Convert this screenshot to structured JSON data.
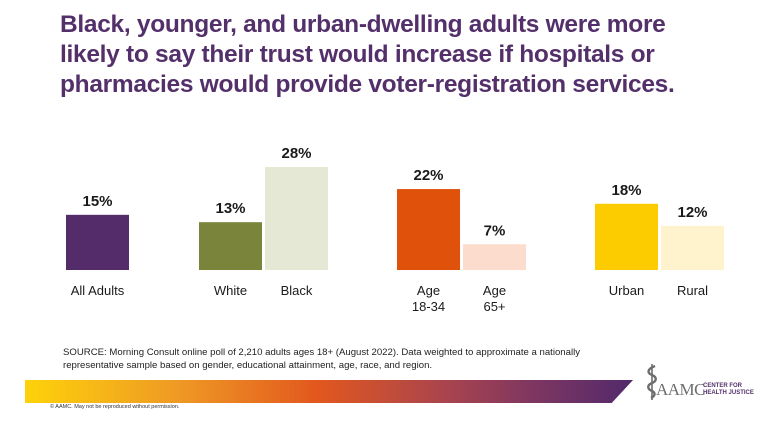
{
  "title": {
    "lines": [
      "Black, younger, and urban-dwelling adults were more",
      "likely to say their trust would increase if hospitals or",
      "pharmacies would provide voter-registration services."
    ]
  },
  "chart_data": {
    "type": "bar",
    "title": "Black, younger, and urban-dwelling adults were more likely to say their trust would increase if hospitals or pharmacies would provide voter-registration services.",
    "xlabel": "",
    "ylabel": "",
    "ylim": [
      0,
      28
    ],
    "grid": false,
    "legend": "none",
    "value_suffix": "%",
    "groups": [
      {
        "name": "overall",
        "bars": [
          {
            "category": "All Adults",
            "label_lines": [
              "All Adults"
            ],
            "value": 15,
            "value_label": "15%",
            "color": "#542c6a"
          }
        ]
      },
      {
        "name": "race",
        "bars": [
          {
            "category": "White",
            "label_lines": [
              "White"
            ],
            "value": 13,
            "value_label": "13%",
            "color": "#7a853b"
          },
          {
            "category": "Black",
            "label_lines": [
              "Black"
            ],
            "value": 28,
            "value_label": "28%",
            "color": "#e5e8d4"
          }
        ]
      },
      {
        "name": "age",
        "bars": [
          {
            "category": "Age 18-34",
            "label_lines": [
              "Age",
              "18-34"
            ],
            "value": 22,
            "value_label": "22%",
            "color": "#e0510b"
          },
          {
            "category": "Age 65+",
            "label_lines": [
              "Age",
              "65+"
            ],
            "value": 7,
            "value_label": "7%",
            "color": "#fcdccd"
          }
        ]
      },
      {
        "name": "location",
        "bars": [
          {
            "category": "Urban",
            "label_lines": [
              "Urban"
            ],
            "value": 18,
            "value_label": "18%",
            "color": "#fccb00"
          },
          {
            "category": "Rural",
            "label_lines": [
              "Rural"
            ],
            "value": 12,
            "value_label": "12%",
            "color": "#fef3cc"
          }
        ]
      }
    ],
    "categories": [
      "All Adults",
      "White",
      "Black",
      "Age 18-34",
      "Age 65+",
      "Urban",
      "Rural"
    ],
    "values": [
      15,
      13,
      28,
      22,
      7,
      18,
      12
    ]
  },
  "source": {
    "line1": "SOURCE: Morning Consult online poll of 2,210 adults ages 18+ (August 2022). Data weighted to approximate a nationally",
    "line2": "representative sample based on gender, educational attainment, age, race, and region."
  },
  "footer": {
    "copyright": "© AAMC. May not be reproduced without permission.",
    "logo_main": "AAMC",
    "logo_sub1": "CENTER FOR",
    "logo_sub2": "HEALTH JUSTICE"
  },
  "colors": {
    "title": "#54306b",
    "band_start": "#fdd20a",
    "band_mid": "#e2581e",
    "band_end": "#52296b"
  }
}
